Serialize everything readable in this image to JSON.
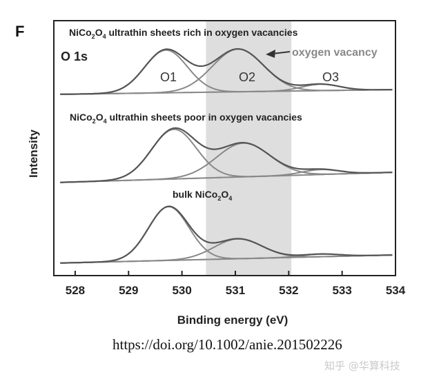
{
  "panel_label": "F",
  "doi_text": "https://doi.org/10.1002/anie.201502226",
  "watermark": "知乎 @华算科技",
  "chart_data": {
    "type": "line",
    "xlabel": "Binding energy (eV)",
    "ylabel": "Intensity",
    "xlim": [
      527.6,
      534.0
    ],
    "xticks": [
      528,
      529,
      530,
      531,
      532,
      533,
      534
    ],
    "xtick_labels": [
      "528",
      "529",
      "530",
      "531",
      "532",
      "533",
      "534"
    ],
    "highlight_band": {
      "x_range": [
        530.45,
        532.05
      ],
      "color": "#dedede"
    },
    "annotation_oxygen_vacancy": "oxygen vacancy",
    "colors": {
      "envelope": "#555555",
      "fit": "#888888",
      "frame": "#222222"
    },
    "panels": [
      {
        "name": "rich",
        "title_parts": [
          "NiCo",
          "2",
          "O",
          "4",
          " ultrathin sheets rich in oxygen vacancies"
        ],
        "spectrum_label": "O 1s",
        "peak_labels": [
          "O1",
          "O2",
          "O3"
        ],
        "baseline": [
          0.3,
          0.0
        ],
        "peaks": [
          {
            "label": "O1",
            "center": 529.7,
            "sigma": 0.4,
            "height": 1.0
          },
          {
            "label": "O2",
            "center": 531.05,
            "sigma": 0.48,
            "height": 1.0
          },
          {
            "label": "O3",
            "center": 532.6,
            "sigma": 0.35,
            "height": 0.15
          }
        ]
      },
      {
        "name": "poor",
        "title_parts": [
          "NiCo",
          "2",
          "O",
          "4",
          " ultrathin sheets poor in oxygen vacancies"
        ],
        "baseline": [
          0.3,
          0.0
        ],
        "peaks": [
          {
            "label": "O1",
            "center": 529.85,
            "sigma": 0.42,
            "height": 1.0
          },
          {
            "label": "O2",
            "center": 531.15,
            "sigma": 0.5,
            "height": 0.68
          },
          {
            "label": "O3",
            "center": 532.6,
            "sigma": 0.35,
            "height": 0.1
          }
        ]
      },
      {
        "name": "bulk",
        "title_parts": [
          "bulk NiCo",
          "2",
          "O",
          "4",
          ""
        ],
        "baseline": [
          0.3,
          0.0
        ],
        "peaks": [
          {
            "label": "O1",
            "center": 529.75,
            "sigma": 0.38,
            "height": 1.0
          },
          {
            "label": "O2",
            "center": 531.05,
            "sigma": 0.45,
            "height": 0.37
          },
          {
            "label": "O3",
            "center": 532.6,
            "sigma": 0.35,
            "height": 0.05
          }
        ]
      }
    ]
  }
}
